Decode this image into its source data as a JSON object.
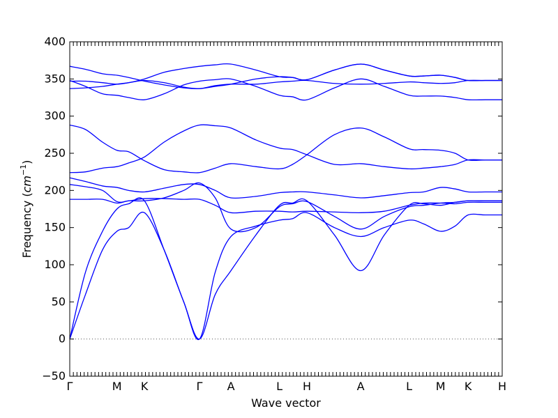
{
  "chart_data": {
    "type": "line",
    "title": "",
    "xlabel": "Wave vector",
    "ylabel_prefix": "Frequency (",
    "ylabel_unit": "cm",
    "ylabel_exp": "−1",
    "ylabel_suffix": ")",
    "ylim": [
      -50,
      400
    ],
    "yticks": [
      -50,
      0,
      50,
      100,
      150,
      200,
      250,
      300,
      350,
      400
    ],
    "xlim": [
      0,
      3.3
    ],
    "zero_line": true,
    "line_color": "#0000ff",
    "high_symmetry_points": [
      {
        "label": "Γ",
        "x": 0.0
      },
      {
        "label": "M",
        "x": 0.36
      },
      {
        "label": "K",
        "x": 0.57
      },
      {
        "label": "Γ",
        "x": 0.99
      },
      {
        "label": "A",
        "x": 1.23
      },
      {
        "label": "L",
        "x": 1.6
      },
      {
        "label": "H",
        "x": 1.81
      },
      {
        "label": "A",
        "x": 2.22
      },
      {
        "label": "L",
        "x": 2.59
      },
      {
        "label": "M",
        "x": 2.83
      },
      {
        "label": "K",
        "x": 3.04
      },
      {
        "label": "H",
        "x": 3.3
      }
    ],
    "series": [
      {
        "x": [
          0,
          0.12,
          0.25,
          0.36,
          0.45,
          0.57,
          0.72,
          0.87,
          0.99,
          1.11,
          1.23,
          1.42,
          1.6,
          1.7,
          1.81,
          2.02,
          2.22,
          2.4,
          2.59,
          2.7,
          2.83,
          2.94,
          3.04,
          3.17,
          3.3
        ],
        "y": [
          0,
          90,
          145,
          175,
          182,
          186,
          120,
          50,
          0,
          60,
          92,
          140,
          180,
          183,
          186,
          140,
          92,
          140,
          180,
          182,
          180,
          184,
          186,
          186,
          186
        ]
      },
      {
        "x": [
          0,
          0.12,
          0.25,
          0.36,
          0.45,
          0.57,
          0.72,
          0.87,
          0.99,
          1.11,
          1.23,
          1.42,
          1.6,
          1.7,
          1.81,
          2.02,
          2.22,
          2.4,
          2.59,
          2.7,
          2.83,
          2.94,
          3.04,
          3.17,
          3.3
        ],
        "y": [
          0,
          60,
          120,
          145,
          150,
          170,
          120,
          50,
          0,
          90,
          138,
          152,
          160,
          162,
          170,
          150,
          138,
          150,
          160,
          155,
          145,
          152,
          167,
          167,
          167
        ]
      },
      {
        "x": [
          0,
          0.12,
          0.25,
          0.36,
          0.45,
          0.57,
          0.72,
          0.87,
          0.99,
          1.11,
          1.23,
          1.42,
          1.6,
          1.7,
          1.81,
          2.02,
          2.22,
          2.4,
          2.59,
          2.7,
          2.83,
          2.94,
          3.04,
          3.17,
          3.3
        ],
        "y": [
          188,
          188,
          188,
          183,
          186,
          186,
          190,
          200,
          210,
          190,
          148,
          150,
          178,
          182,
          185,
          165,
          148,
          165,
          178,
          180,
          183,
          184,
          186,
          186,
          186
        ]
      },
      {
        "x": [
          0,
          0.12,
          0.25,
          0.36,
          0.45,
          0.57,
          0.72,
          0.87,
          0.99,
          1.11,
          1.23,
          1.42,
          1.6,
          1.7,
          1.81,
          2.02,
          2.22,
          2.4,
          2.59,
          2.7,
          2.83,
          2.94,
          3.04,
          3.17,
          3.3
        ],
        "y": [
          208,
          205,
          200,
          185,
          186,
          189,
          189,
          188,
          188,
          180,
          170,
          172,
          172,
          171,
          172,
          171,
          170,
          172,
          180,
          183,
          183,
          182,
          184,
          184,
          184
        ]
      },
      {
        "x": [
          0,
          0.12,
          0.25,
          0.36,
          0.45,
          0.57,
          0.72,
          0.87,
          0.99,
          1.11,
          1.23,
          1.42,
          1.6,
          1.7,
          1.81,
          2.02,
          2.22,
          2.4,
          2.59,
          2.7,
          2.83,
          2.94,
          3.04,
          3.17,
          3.3
        ],
        "y": [
          217,
          212,
          206,
          204,
          200,
          198,
          203,
          208,
          208,
          200,
          190,
          192,
          197,
          198,
          198,
          194,
          190,
          193,
          197,
          198,
          204,
          202,
          198,
          198,
          198
        ]
      },
      {
        "x": [
          0,
          0.12,
          0.25,
          0.36,
          0.45,
          0.57,
          0.72,
          0.87,
          0.99,
          1.11,
          1.23,
          1.42,
          1.6,
          1.7,
          1.81,
          2.02,
          2.22,
          2.4,
          2.59,
          2.7,
          2.83,
          2.94,
          3.04,
          3.17,
          3.3
        ],
        "y": [
          224,
          225,
          230,
          232,
          237,
          245,
          265,
          280,
          288,
          287,
          284,
          268,
          257,
          255,
          248,
          235,
          236,
          232,
          229,
          230,
          232,
          235,
          241,
          241,
          241
        ]
      },
      {
        "x": [
          0,
          0.12,
          0.25,
          0.36,
          0.45,
          0.57,
          0.72,
          0.87,
          0.99,
          1.11,
          1.23,
          1.42,
          1.6,
          1.7,
          1.81,
          2.02,
          2.22,
          2.4,
          2.59,
          2.7,
          2.83,
          2.94,
          3.04,
          3.17,
          3.3
        ],
        "y": [
          288,
          282,
          265,
          254,
          252,
          240,
          228,
          225,
          224,
          230,
          236,
          232,
          229,
          235,
          248,
          275,
          284,
          272,
          256,
          255,
          254,
          250,
          241,
          241,
          241
        ]
      },
      {
        "x": [
          0,
          0.12,
          0.25,
          0.36,
          0.45,
          0.57,
          0.72,
          0.87,
          0.99,
          1.11,
          1.23,
          1.42,
          1.6,
          1.7,
          1.81,
          2.02,
          2.22,
          2.4,
          2.59,
          2.7,
          2.83,
          2.94,
          3.04,
          3.17,
          3.3
        ],
        "y": [
          337,
          338,
          340,
          343,
          345,
          348,
          345,
          339,
          337,
          341,
          343,
          343,
          346,
          347,
          348,
          344,
          343,
          344,
          346,
          345,
          344,
          345,
          348,
          348,
          348
        ]
      },
      {
        "x": [
          0,
          0.12,
          0.25,
          0.36,
          0.45,
          0.57,
          0.72,
          0.87,
          0.99,
          1.11,
          1.23,
          1.42,
          1.6,
          1.7,
          1.81,
          2.02,
          2.22,
          2.4,
          2.59,
          2.7,
          2.83,
          2.94,
          3.04,
          3.17,
          3.3
        ],
        "y": [
          348,
          340,
          330,
          328,
          325,
          322,
          330,
          342,
          347,
          349,
          350,
          340,
          328,
          326,
          322,
          338,
          350,
          340,
          328,
          327,
          327,
          325,
          322,
          322,
          322
        ]
      },
      {
        "x": [
          0,
          0.12,
          0.25,
          0.36,
          0.45,
          0.57,
          0.72,
          0.87,
          0.99,
          1.11,
          1.23,
          1.42,
          1.6,
          1.7,
          1.81,
          2.02,
          2.22,
          2.4,
          2.59,
          2.7,
          2.83,
          2.94,
          3.04,
          3.17,
          3.3
        ],
        "y": [
          367,
          363,
          357,
          355,
          352,
          347,
          342,
          338,
          337,
          340,
          343,
          350,
          353,
          352,
          349,
          362,
          370,
          362,
          354,
          354,
          355,
          352,
          348,
          348,
          348
        ]
      },
      {
        "x": [
          0,
          0.12,
          0.25,
          0.36,
          0.45,
          0.57,
          0.72,
          0.87,
          0.99,
          1.11,
          1.23,
          1.42,
          1.6,
          1.7,
          1.81,
          2.02,
          2.22,
          2.4,
          2.59,
          2.7,
          2.83,
          2.94,
          3.04,
          3.17,
          3.3
        ],
        "y": [
          347,
          347,
          345,
          343,
          345,
          350,
          359,
          364,
          367,
          369,
          370,
          362,
          353,
          352,
          349,
          362,
          370,
          362,
          354,
          354,
          355,
          352,
          348,
          348,
          348
        ]
      }
    ]
  }
}
